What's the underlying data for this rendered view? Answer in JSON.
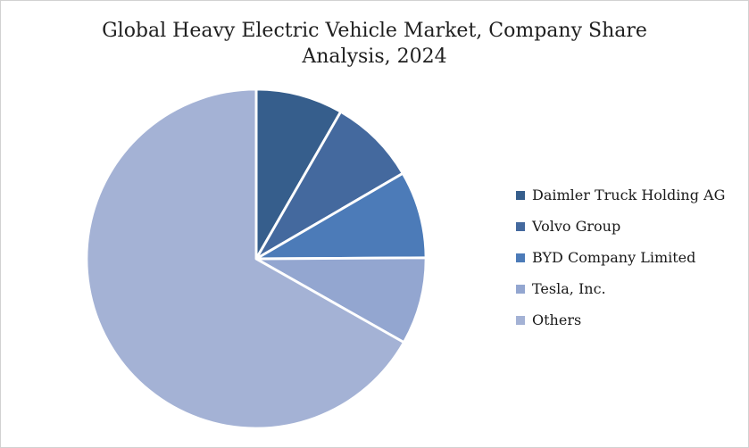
{
  "header": {
    "title_line1": "Global Heavy Electric Vehicle Market, Company Share",
    "title_line2": "Analysis, 2024"
  },
  "chart_data": {
    "type": "pie",
    "title": "Global Heavy Electric Vehicle Market, Company Share Analysis, 2024",
    "labels": [
      "Daimler Truck Holding AG",
      "Volvo Group",
      "BYD Company Limited",
      "Tesla, Inc.",
      "Others"
    ],
    "values": [
      8.3,
      8.3,
      8.3,
      8.3,
      66.8
    ],
    "unit": "percent-market-share",
    "colors": [
      "#365E8C",
      "#44699E",
      "#4C7BB8",
      "#93A6D0",
      "#A4B2D5"
    ],
    "slice_border_color": "#FFFFFF",
    "start_angle_deg": 0,
    "direction": "clockwise",
    "legend_position": "right",
    "legend_marker": "square"
  }
}
